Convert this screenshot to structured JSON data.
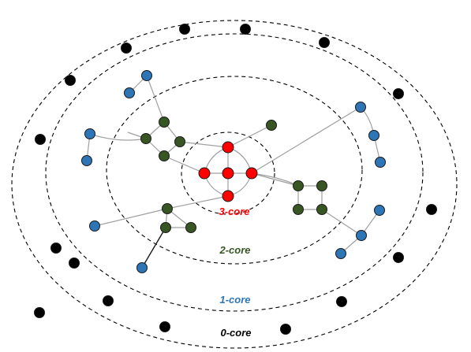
{
  "labels": {
    "core3": "3-core",
    "core2": "2-core",
    "core1": "1-core",
    "core0": "0-core"
  },
  "colors": {
    "core3": "#ff0000",
    "core2": "#375623",
    "core1": "#2e75b6",
    "core0": "#000000",
    "edge": "#a0a0a0"
  },
  "nodes": {
    "red": [
      "r-top",
      "r-left",
      "r-center",
      "r-right",
      "r-bottom"
    ],
    "green": [
      "g-a",
      "g-b",
      "g-c",
      "g-d",
      "g-e",
      "g-f",
      "g-g",
      "g-h",
      "g-i",
      "g-j",
      "g-k",
      "g-l",
      "g-m"
    ],
    "blue": [
      "b-a",
      "b-b",
      "b-c",
      "b-d",
      "b-e",
      "b-f",
      "b-g",
      "b-h",
      "b-i",
      "b-j",
      "b-k",
      "b-l"
    ],
    "black": [
      "k-a",
      "k-b",
      "k-c",
      "k-d",
      "k-e",
      "k-f",
      "k-g",
      "k-h",
      "k-i",
      "k-j",
      "k-k",
      "k-l",
      "k-m",
      "k-n",
      "k-o",
      "k-p"
    ]
  }
}
